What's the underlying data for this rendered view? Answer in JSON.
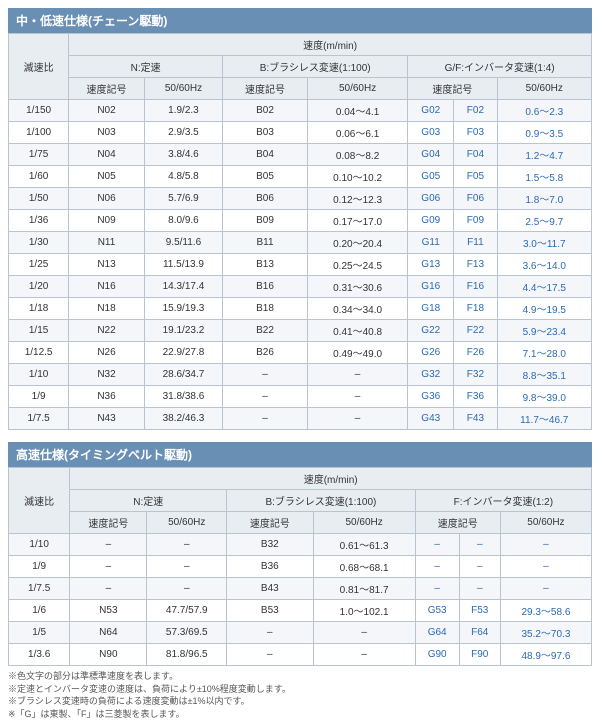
{
  "table1": {
    "title": "中・低速仕様(チェーン駆動)",
    "header1": "滅速比",
    "header2": "速度(m/min)",
    "colgroups": [
      "N:定速",
      "B:ブラシレス変速(1:100)",
      "G/F:インバータ変速(1:4)"
    ],
    "subheads": [
      "速度記号",
      "50/60Hz",
      "速度記号",
      "50/60Hz",
      "速度記号",
      "50/60Hz"
    ],
    "rows": [
      [
        "1/150",
        "N02",
        "1.9/2.3",
        "B02",
        "0.04～4.1",
        "G02",
        "F02",
        "0.6～2.3"
      ],
      [
        "1/100",
        "N03",
        "2.9/3.5",
        "B03",
        "0.06～6.1",
        "G03",
        "F03",
        "0.9～3.5"
      ],
      [
        "1/75",
        "N04",
        "3.8/4.6",
        "B04",
        "0.08～8.2",
        "G04",
        "F04",
        "1.2～4.7"
      ],
      [
        "1/60",
        "N05",
        "4.8/5.8",
        "B05",
        "0.10～10.2",
        "G05",
        "F05",
        "1.5～5.8"
      ],
      [
        "1/50",
        "N06",
        "5.7/6.9",
        "B06",
        "0.12～12.3",
        "G06",
        "F06",
        "1.8～7.0"
      ],
      [
        "1/36",
        "N09",
        "8.0/9.6",
        "B09",
        "0.17～17.0",
        "G09",
        "F09",
        "2.5～9.7"
      ],
      [
        "1/30",
        "N11",
        "9.5/11.6",
        "B11",
        "0.20～20.4",
        "G11",
        "F11",
        "3.0～11.7"
      ],
      [
        "1/25",
        "N13",
        "11.5/13.9",
        "B13",
        "0.25～24.5",
        "G13",
        "F13",
        "3.6～14.0"
      ],
      [
        "1/20",
        "N16",
        "14.3/17.4",
        "B16",
        "0.31～30.6",
        "G16",
        "F16",
        "4.4～17.5"
      ],
      [
        "1/18",
        "N18",
        "15.9/19.3",
        "B18",
        "0.34～34.0",
        "G18",
        "F18",
        "4.9～19.5"
      ],
      [
        "1/15",
        "N22",
        "19.1/23.2",
        "B22",
        "0.41～40.8",
        "G22",
        "F22",
        "5.9～23.4"
      ],
      [
        "1/12.5",
        "N26",
        "22.9/27.8",
        "B26",
        "0.49～49.0",
        "G26",
        "F26",
        "7.1～28.0"
      ],
      [
        "1/10",
        "N32",
        "28.6/34.7",
        "–",
        "–",
        "G32",
        "F32",
        "8.8～35.1"
      ],
      [
        "1/9",
        "N36",
        "31.8/38.6",
        "–",
        "–",
        "G36",
        "F36",
        "9.8～39.0"
      ],
      [
        "1/7.5",
        "N43",
        "38.2/46.3",
        "–",
        "–",
        "G43",
        "F43",
        "11.7～46.7"
      ]
    ]
  },
  "table2": {
    "title": "高速仕様(タイミングベルト駆動)",
    "header1": "滅速比",
    "header2": "速度(m/min)",
    "colgroups": [
      "N:定速",
      "B:ブラシレス変速(1:100)",
      "F:インバータ変速(1:2)"
    ],
    "subheads": [
      "速度記号",
      "50/60Hz",
      "速度記号",
      "50/60Hz",
      "速度記号",
      "50/60Hz"
    ],
    "rows": [
      [
        "1/10",
        "–",
        "–",
        "B32",
        "0.61～61.3",
        "–",
        "–",
        "–"
      ],
      [
        "1/9",
        "–",
        "–",
        "B36",
        "0.68～68.1",
        "–",
        "–",
        "–"
      ],
      [
        "1/7.5",
        "–",
        "–",
        "B43",
        "0.81～81.7",
        "–",
        "–",
        "–"
      ],
      [
        "1/6",
        "N53",
        "47.7/57.9",
        "B53",
        "1.0～102.1",
        "G53",
        "F53",
        "29.3～58.6"
      ],
      [
        "1/5",
        "N64",
        "57.3/69.5",
        "–",
        "–",
        "G64",
        "F64",
        "35.2～70.3"
      ],
      [
        "1/3.6",
        "N90",
        "81.8/96.5",
        "–",
        "–",
        "G90",
        "F90",
        "48.9～97.6"
      ]
    ]
  },
  "notes": [
    "※色文字の部分は準標準速度を表します。",
    "※定速とインバータ変速の速度は、負荷により±10%程度変動します。",
    "※ブラシレス変速時の負荷による速度変動は±1%以内です。",
    "※「G」は東製、「F」は三菱製を表します。"
  ]
}
